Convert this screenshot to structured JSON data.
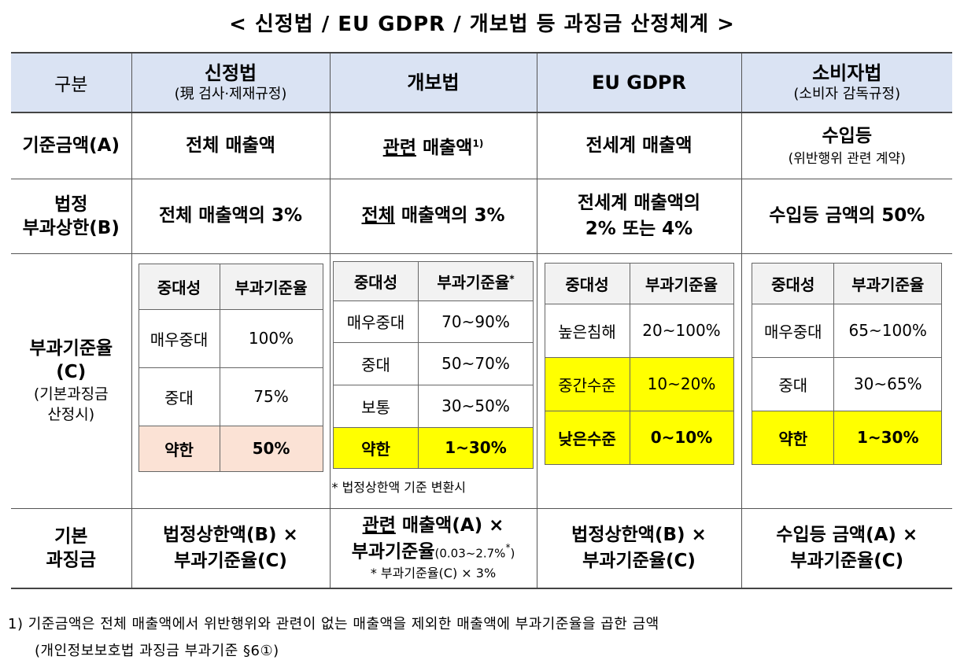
{
  "title": "< 신정법 / EU GDPR / 개보법 등 과징금 산정체계 >",
  "header": {
    "category": "구분",
    "col1_title": "신정법",
    "col1_sub": "(現 검사·제재규정)",
    "col2_title": "개보법",
    "col3_title": "EU GDPR",
    "col4_title": "소비자법",
    "col4_sub": "(소비자 감독규정)"
  },
  "row_base": {
    "label": "기준금액(A)",
    "col1": "전체 매출액",
    "col2_underlined": "관련",
    "col2_rest": " 매출액",
    "col2_sup": "1)",
    "col3": "전세계 매출액",
    "col4_main": "수입등",
    "col4_sub": "(위반행위 관련 계약)"
  },
  "row_limit": {
    "label_line1": "법정",
    "label_line2": "부과상한(B)",
    "col1": "전체 매출액의 3%",
    "col2_underlined": "전체",
    "col2_rest": " 매출액의 3%",
    "col3_line1": "전세계 매출액의",
    "col3_line2": "2% 또는 4%",
    "col4": "수입등 금액의 50%"
  },
  "row_rate": {
    "label_line1": "부과기준율",
    "label_line2": "(C)",
    "label_line3": "(기본과징금",
    "label_line4": "산정시)",
    "inner_header_severity": "중대성",
    "inner_header_rate": "부과기준율",
    "col1": [
      {
        "severity": "매우중대",
        "rate": "100%"
      },
      {
        "severity": "중대",
        "rate": "75%"
      },
      {
        "severity": "약한",
        "rate": "50%"
      }
    ],
    "col2_header_sup": "*",
    "col2": [
      {
        "severity": "매우중대",
        "rate": "70~90%"
      },
      {
        "severity": "중대",
        "rate": "50~70%"
      },
      {
        "severity": "보통",
        "rate": "30~50%"
      },
      {
        "severity": "약한",
        "rate": "1~30%"
      }
    ],
    "col2_note": "* 법정상한액 기준 변환시",
    "col3": [
      {
        "severity": "높은침해",
        "rate": "20~100%"
      },
      {
        "severity": "중간수준",
        "rate": "10~20%"
      },
      {
        "severity": "낮은수준",
        "rate": "0~10%"
      }
    ],
    "col4": [
      {
        "severity": "매우중대",
        "rate": "65~100%"
      },
      {
        "severity": "중대",
        "rate": "30~65%"
      },
      {
        "severity": "약한",
        "rate": "1~30%"
      }
    ]
  },
  "row_fine": {
    "label_line1": "기본",
    "label_line2": "과징금",
    "col1_line1": "법정상한액(B) ×",
    "col1_line2": "부과기준율(C)",
    "col2_line1_underlined": "관련",
    "col2_line1_rest": " 매출액(A) ×",
    "col2_line2": "부과기준율",
    "col2_line2_small": "(0.03~2.7%",
    "col2_line2_sup": "*",
    "col2_line2_close": ")",
    "col2_note": "* 부과기준율(C) × 3%",
    "col3_line1": "법정상한액(B) ×",
    "col3_line2": "부과기준율(C)",
    "col4_line1": "수입등 금액(A) ×",
    "col4_line2": "부과기준율(C)"
  },
  "footnote": {
    "line1": "1) 기준금액은 전체 매출액에서 위반행위와 관련이 없는 매출액을 제외한 매출액에 부과기준율을 곱한 금액",
    "line2": "(개인정보보호법 과징금 부과기준 §6①)"
  },
  "colors": {
    "header_bg": "#dae3f3",
    "highlight_yellow": "#ffff00",
    "highlight_pink": "#fbe2d5"
  }
}
